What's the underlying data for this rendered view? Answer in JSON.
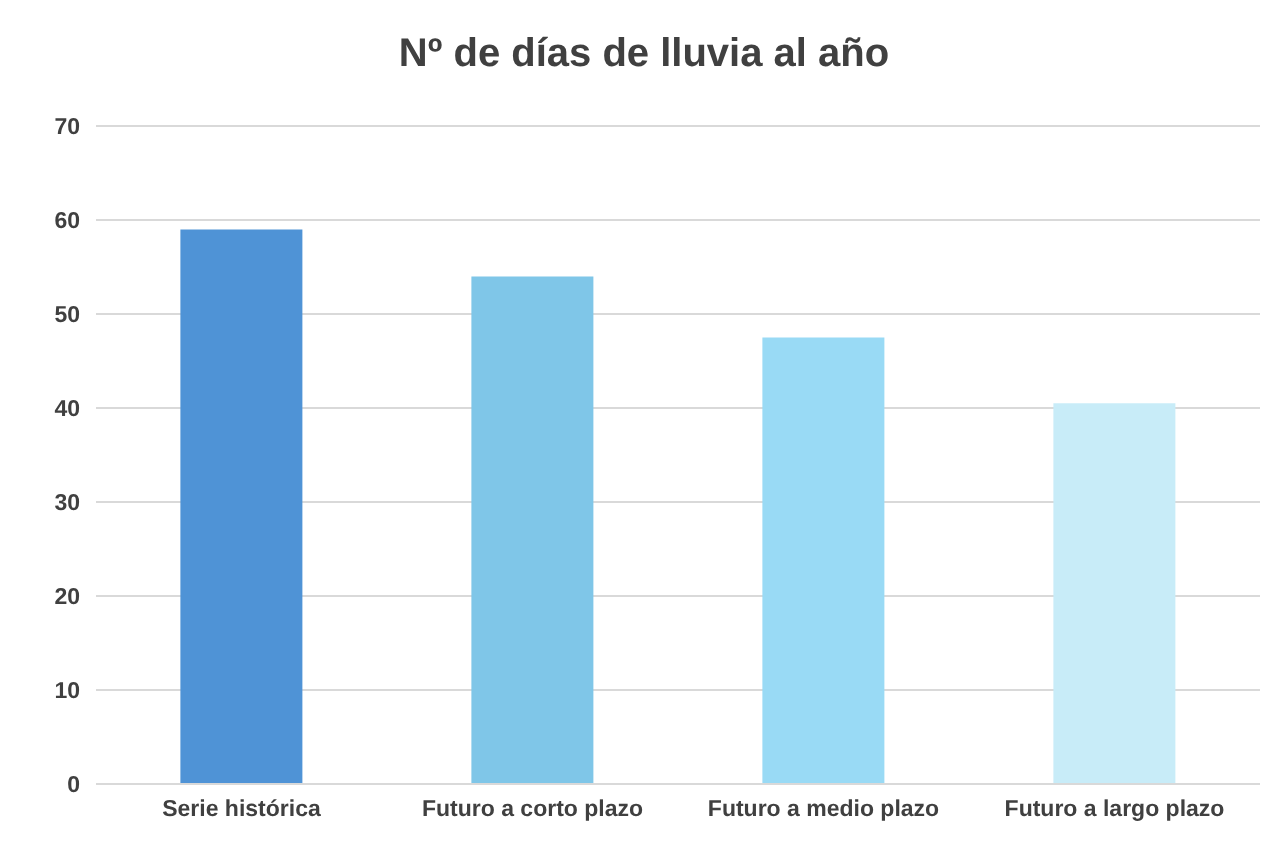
{
  "chart_data": {
    "type": "bar",
    "title": "Nº de días de lluvia al año",
    "categories": [
      "Serie histórica",
      "Futuro a corto plazo",
      "Futuro a medio plazo",
      "Futuro a largo plazo"
    ],
    "values": [
      59,
      54,
      47.5,
      40.5
    ],
    "colors": [
      "#4f93d6",
      "#7fc6e8",
      "#99daf5",
      "#c8ecf8"
    ],
    "ylim": [
      0,
      70
    ],
    "yticks": [
      0,
      10,
      20,
      30,
      40,
      50,
      60,
      70
    ],
    "grid": "y"
  }
}
